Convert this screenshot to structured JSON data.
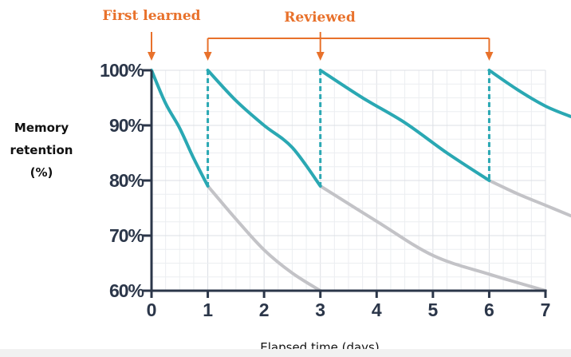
{
  "chart_data": {
    "type": "line",
    "title": "",
    "xlabel": "Elapsed time (days)",
    "ylabel": "Memory retention (%)",
    "xlim": [
      0,
      7
    ],
    "ylim": [
      60,
      100
    ],
    "x_ticks": [
      "0",
      "1",
      "2",
      "3",
      "4",
      "5",
      "6",
      "7"
    ],
    "y_ticks": [
      "60%",
      "70%",
      "80%",
      "90%",
      "100%"
    ],
    "grid": true,
    "annotations": {
      "first_learned": {
        "label": "First learned",
        "day": 0
      },
      "reviewed": {
        "label": "Reviewed",
        "days": [
          1,
          3,
          6
        ]
      }
    },
    "colors": {
      "retained": "#2aa8b3",
      "forgetting": "#c3c3c7",
      "annotation": "#e8712b",
      "axis": "#2b3649"
    },
    "series": [
      {
        "kind": "retained",
        "points": [
          [
            0,
            100
          ],
          [
            0.25,
            94
          ],
          [
            0.5,
            89.5
          ],
          [
            0.75,
            84
          ],
          [
            1,
            79
          ]
        ]
      },
      {
        "kind": "forgetting",
        "points": [
          [
            1,
            79
          ],
          [
            1.5,
            73
          ],
          [
            2,
            67.4
          ],
          [
            2.5,
            63.2
          ],
          [
            3,
            60
          ]
        ]
      },
      {
        "kind": "retained",
        "points": [
          [
            1,
            100
          ],
          [
            1.5,
            94.5
          ],
          [
            2,
            90
          ],
          [
            2.5,
            86
          ],
          [
            3,
            79
          ]
        ]
      },
      {
        "kind": "forgetting",
        "points": [
          [
            3,
            79
          ],
          [
            4,
            72.6
          ],
          [
            5,
            66.4
          ],
          [
            6,
            63
          ],
          [
            7,
            60
          ]
        ]
      },
      {
        "kind": "retained",
        "points": [
          [
            3,
            100
          ],
          [
            3.75,
            95
          ],
          [
            4.5,
            90.5
          ],
          [
            5.25,
            85
          ],
          [
            6,
            80
          ]
        ]
      },
      {
        "kind": "forgetting",
        "points": [
          [
            6,
            80
          ],
          [
            6.5,
            77.6
          ],
          [
            7,
            75.5
          ],
          [
            7.45,
            73.6
          ]
        ]
      },
      {
        "kind": "retained",
        "points": [
          [
            6,
            100
          ],
          [
            6.5,
            96.5
          ],
          [
            7,
            93.5
          ],
          [
            7.45,
            91.6
          ]
        ]
      }
    ],
    "review_markers": [
      1,
      3,
      6
    ]
  }
}
